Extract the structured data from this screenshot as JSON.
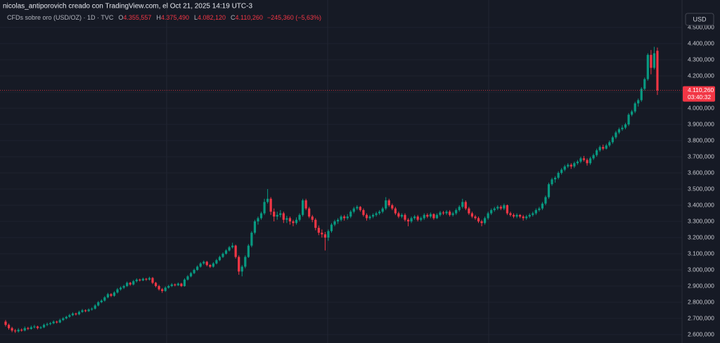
{
  "header": "nicolas_antiporovich creado con TradingView.com, el Oct 21, 2025 14:19 UTC-3",
  "currency_button": "USD",
  "legend": {
    "symbol": "CFDs sobre oro (USD/OZ) · 1D · TVC",
    "items": [
      {
        "key": "O",
        "value": "4.355,557"
      },
      {
        "key": "H",
        "value": "4.375,490"
      },
      {
        "key": "L",
        "value": "4.082,120"
      },
      {
        "key": "C",
        "value": "4.110,260"
      }
    ],
    "change": "−245,360 (−5,63%)"
  },
  "chart_data": {
    "type": "candlestick",
    "up_color": "#089981",
    "down_color": "#f23645",
    "grid": true,
    "ylim": [
      2550,
      4650
    ],
    "yticks": [
      {
        "value": 2600,
        "label": "2.600,000"
      },
      {
        "value": 2700,
        "label": "2.700,000"
      },
      {
        "value": 2800,
        "label": "2.800,000"
      },
      {
        "value": 2900,
        "label": "2.900,000"
      },
      {
        "value": 3000,
        "label": "3.000,000"
      },
      {
        "value": 3100,
        "label": "3.100,000"
      },
      {
        "value": 3200,
        "label": "3.200,000"
      },
      {
        "value": 3300,
        "label": "3.300,000"
      },
      {
        "value": 3400,
        "label": "3.400,000"
      },
      {
        "value": 3500,
        "label": "3.500,000"
      },
      {
        "value": 3600,
        "label": "3.600,000"
      },
      {
        "value": 3700,
        "label": "3.700,000"
      },
      {
        "value": 3800,
        "label": "3.800,000"
      },
      {
        "value": 3900,
        "label": "3.900,000"
      },
      {
        "value": 4000,
        "label": "4.000,000"
      },
      {
        "value": 4100,
        "label": "4.100,000"
      },
      {
        "value": 4200,
        "label": "4.200,000"
      },
      {
        "value": 4300,
        "label": "4.300,000"
      },
      {
        "value": 4400,
        "label": "4.400,000"
      },
      {
        "value": 4500,
        "label": "4.500,000"
      }
    ],
    "last_price": {
      "value": 4110.26,
      "label": "4.110,260"
    },
    "countdown": "03:40:32",
    "ohlc": [
      [
        2680,
        2690,
        2650,
        2660
      ],
      [
        2660,
        2668,
        2630,
        2640
      ],
      [
        2640,
        2648,
        2615,
        2625
      ],
      [
        2625,
        2635,
        2610,
        2620
      ],
      [
        2620,
        2640,
        2612,
        2630
      ],
      [
        2630,
        2638,
        2618,
        2625
      ],
      [
        2625,
        2650,
        2620,
        2640
      ],
      [
        2640,
        2648,
        2628,
        2635
      ],
      [
        2635,
        2655,
        2630,
        2645
      ],
      [
        2645,
        2660,
        2638,
        2650
      ],
      [
        2650,
        2655,
        2632,
        2640
      ],
      [
        2640,
        2652,
        2634,
        2645
      ],
      [
        2645,
        2668,
        2640,
        2660
      ],
      [
        2660,
        2674,
        2652,
        2665
      ],
      [
        2665,
        2678,
        2658,
        2670
      ],
      [
        2670,
        2688,
        2664,
        2680
      ],
      [
        2680,
        2686,
        2668,
        2675
      ],
      [
        2675,
        2698,
        2670,
        2690
      ],
      [
        2690,
        2708,
        2684,
        2700
      ],
      [
        2700,
        2716,
        2694,
        2710
      ],
      [
        2710,
        2728,
        2704,
        2720
      ],
      [
        2720,
        2738,
        2714,
        2730
      ],
      [
        2730,
        2736,
        2718,
        2725
      ],
      [
        2725,
        2748,
        2720,
        2740
      ],
      [
        2740,
        2758,
        2734,
        2750
      ],
      [
        2750,
        2756,
        2738,
        2745
      ],
      [
        2745,
        2762,
        2740,
        2755
      ],
      [
        2755,
        2768,
        2748,
        2760
      ],
      [
        2760,
        2788,
        2755,
        2780
      ],
      [
        2780,
        2808,
        2774,
        2800
      ],
      [
        2800,
        2818,
        2794,
        2810
      ],
      [
        2810,
        2838,
        2804,
        2830
      ],
      [
        2830,
        2858,
        2824,
        2850
      ],
      [
        2850,
        2856,
        2832,
        2840
      ],
      [
        2840,
        2868,
        2834,
        2860
      ],
      [
        2860,
        2888,
        2854,
        2880
      ],
      [
        2880,
        2898,
        2872,
        2890
      ],
      [
        2890,
        2908,
        2882,
        2900
      ],
      [
        2900,
        2928,
        2894,
        2920
      ],
      [
        2920,
        2926,
        2902,
        2910
      ],
      [
        2910,
        2938,
        2904,
        2930
      ],
      [
        2930,
        2948,
        2922,
        2940
      ],
      [
        2940,
        2946,
        2928,
        2935
      ],
      [
        2935,
        2952,
        2930,
        2945
      ],
      [
        2945,
        2950,
        2932,
        2940
      ],
      [
        2940,
        2958,
        2934,
        2950
      ],
      [
        2950,
        2956,
        2912,
        2920
      ],
      [
        2920,
        2926,
        2892,
        2900
      ],
      [
        2900,
        2908,
        2872,
        2880
      ],
      [
        2880,
        2888,
        2858,
        2870
      ],
      [
        2870,
        2898,
        2864,
        2890
      ],
      [
        2890,
        2908,
        2884,
        2900
      ],
      [
        2900,
        2918,
        2894,
        2910
      ],
      [
        2910,
        2916,
        2898,
        2905
      ],
      [
        2905,
        2922,
        2900,
        2915
      ],
      [
        2915,
        2920,
        2894,
        2900
      ],
      [
        2900,
        2948,
        2896,
        2940
      ],
      [
        2940,
        2968,
        2934,
        2960
      ],
      [
        2960,
        2988,
        2954,
        2980
      ],
      [
        2980,
        3008,
        2974,
        3000
      ],
      [
        3000,
        3028,
        2994,
        3020
      ],
      [
        3020,
        3048,
        3014,
        3040
      ],
      [
        3040,
        3058,
        3032,
        3050
      ],
      [
        3050,
        3056,
        3022,
        3030
      ],
      [
        3030,
        3036,
        3012,
        3020
      ],
      [
        3020,
        3048,
        3014,
        3040
      ],
      [
        3040,
        3068,
        3034,
        3060
      ],
      [
        3060,
        3088,
        3054,
        3080
      ],
      [
        3080,
        3108,
        3074,
        3100
      ],
      [
        3100,
        3128,
        3094,
        3120
      ],
      [
        3120,
        3148,
        3114,
        3140
      ],
      [
        3140,
        3168,
        3132,
        3150
      ],
      [
        3150,
        3156,
        3070,
        3080
      ],
      [
        3080,
        3090,
        2970,
        2990
      ],
      [
        2990,
        3030,
        2960,
        3020
      ],
      [
        3020,
        3090,
        3010,
        3080
      ],
      [
        3080,
        3160,
        3074,
        3150
      ],
      [
        3150,
        3240,
        3140,
        3230
      ],
      [
        3230,
        3310,
        3220,
        3300
      ],
      [
        3300,
        3330,
        3280,
        3320
      ],
      [
        3320,
        3360,
        3310,
        3350
      ],
      [
        3350,
        3440,
        3340,
        3420
      ],
      [
        3420,
        3500,
        3410,
        3440
      ],
      [
        3440,
        3450,
        3340,
        3360
      ],
      [
        3360,
        3380,
        3300,
        3330
      ],
      [
        3330,
        3360,
        3310,
        3340
      ],
      [
        3340,
        3370,
        3325,
        3350
      ],
      [
        3350,
        3360,
        3290,
        3310
      ],
      [
        3310,
        3335,
        3290,
        3320
      ],
      [
        3320,
        3330,
        3280,
        3300
      ],
      [
        3300,
        3310,
        3270,
        3290
      ],
      [
        3290,
        3325,
        3280,
        3310
      ],
      [
        3310,
        3350,
        3300,
        3340
      ],
      [
        3340,
        3440,
        3330,
        3430
      ],
      [
        3430,
        3440,
        3370,
        3380
      ],
      [
        3380,
        3390,
        3320,
        3330
      ],
      [
        3330,
        3340,
        3295,
        3310
      ],
      [
        3310,
        3320,
        3245,
        3260
      ],
      [
        3260,
        3275,
        3215,
        3230
      ],
      [
        3230,
        3250,
        3200,
        3220
      ],
      [
        3220,
        3235,
        3120,
        3200
      ],
      [
        3200,
        3250,
        3180,
        3240
      ],
      [
        3240,
        3290,
        3230,
        3280
      ],
      [
        3280,
        3310,
        3270,
        3300
      ],
      [
        3300,
        3320,
        3285,
        3310
      ],
      [
        3310,
        3340,
        3300,
        3330
      ],
      [
        3330,
        3340,
        3305,
        3320
      ],
      [
        3320,
        3345,
        3310,
        3330
      ],
      [
        3330,
        3370,
        3320,
        3360
      ],
      [
        3360,
        3390,
        3350,
        3380
      ],
      [
        3380,
        3400,
        3370,
        3390
      ],
      [
        3390,
        3395,
        3360,
        3370
      ],
      [
        3370,
        3380,
        3330,
        3340
      ],
      [
        3340,
        3350,
        3305,
        3320
      ],
      [
        3320,
        3340,
        3310,
        3330
      ],
      [
        3330,
        3350,
        3320,
        3340
      ],
      [
        3340,
        3360,
        3330,
        3350
      ],
      [
        3350,
        3370,
        3340,
        3360
      ],
      [
        3360,
        3390,
        3350,
        3380
      ],
      [
        3380,
        3450,
        3370,
        3430
      ],
      [
        3430,
        3440,
        3390,
        3400
      ],
      [
        3400,
        3410,
        3370,
        3380
      ],
      [
        3380,
        3390,
        3340,
        3350
      ],
      [
        3350,
        3360,
        3320,
        3330
      ],
      [
        3330,
        3350,
        3320,
        3340
      ],
      [
        3340,
        3350,
        3300,
        3310
      ],
      [
        3310,
        3320,
        3270,
        3300
      ],
      [
        3300,
        3330,
        3290,
        3320
      ],
      [
        3320,
        3340,
        3310,
        3330
      ],
      [
        3330,
        3340,
        3300,
        3310
      ],
      [
        3310,
        3330,
        3300,
        3320
      ],
      [
        3320,
        3350,
        3310,
        3340
      ],
      [
        3340,
        3350,
        3320,
        3330
      ],
      [
        3330,
        3355,
        3320,
        3345
      ],
      [
        3345,
        3350,
        3310,
        3320
      ],
      [
        3320,
        3350,
        3315,
        3340
      ],
      [
        3340,
        3365,
        3330,
        3355
      ],
      [
        3355,
        3365,
        3340,
        3350
      ],
      [
        3350,
        3370,
        3340,
        3360
      ],
      [
        3360,
        3370,
        3330,
        3340
      ],
      [
        3340,
        3360,
        3330,
        3350
      ],
      [
        3350,
        3380,
        3340,
        3370
      ],
      [
        3370,
        3400,
        3360,
        3390
      ],
      [
        3390,
        3440,
        3380,
        3420
      ],
      [
        3420,
        3430,
        3370,
        3380
      ],
      [
        3380,
        3390,
        3340,
        3350
      ],
      [
        3350,
        3360,
        3320,
        3330
      ],
      [
        3330,
        3340,
        3310,
        3320
      ],
      [
        3320,
        3330,
        3290,
        3300
      ],
      [
        3300,
        3310,
        3270,
        3290
      ],
      [
        3290,
        3330,
        3280,
        3320
      ],
      [
        3320,
        3360,
        3310,
        3350
      ],
      [
        3350,
        3380,
        3340,
        3370
      ],
      [
        3370,
        3390,
        3360,
        3380
      ],
      [
        3380,
        3400,
        3370,
        3390
      ],
      [
        3390,
        3400,
        3370,
        3380
      ],
      [
        3380,
        3410,
        3370,
        3400
      ],
      [
        3400,
        3405,
        3340,
        3350
      ],
      [
        3350,
        3360,
        3330,
        3340
      ],
      [
        3340,
        3350,
        3320,
        3330
      ],
      [
        3330,
        3350,
        3320,
        3340
      ],
      [
        3340,
        3345,
        3320,
        3330
      ],
      [
        3330,
        3340,
        3305,
        3320
      ],
      [
        3320,
        3340,
        3310,
        3330
      ],
      [
        3330,
        3350,
        3320,
        3340
      ],
      [
        3340,
        3360,
        3330,
        3350
      ],
      [
        3350,
        3380,
        3340,
        3370
      ],
      [
        3370,
        3390,
        3360,
        3380
      ],
      [
        3380,
        3420,
        3370,
        3410
      ],
      [
        3410,
        3460,
        3400,
        3450
      ],
      [
        3450,
        3540,
        3440,
        3530
      ],
      [
        3530,
        3570,
        3520,
        3560
      ],
      [
        3560,
        3580,
        3540,
        3570
      ],
      [
        3570,
        3610,
        3560,
        3600
      ],
      [
        3600,
        3630,
        3590,
        3620
      ],
      [
        3620,
        3650,
        3610,
        3640
      ],
      [
        3640,
        3660,
        3630,
        3650
      ],
      [
        3650,
        3660,
        3625,
        3640
      ],
      [
        3640,
        3670,
        3630,
        3660
      ],
      [
        3660,
        3680,
        3650,
        3670
      ],
      [
        3670,
        3700,
        3660,
        3690
      ],
      [
        3690,
        3705,
        3670,
        3680
      ],
      [
        3680,
        3690,
        3645,
        3660
      ],
      [
        3660,
        3700,
        3650,
        3690
      ],
      [
        3690,
        3720,
        3680,
        3710
      ],
      [
        3710,
        3750,
        3700,
        3740
      ],
      [
        3740,
        3770,
        3730,
        3760
      ],
      [
        3760,
        3775,
        3740,
        3750
      ],
      [
        3750,
        3780,
        3745,
        3770
      ],
      [
        3770,
        3800,
        3760,
        3790
      ],
      [
        3790,
        3830,
        3780,
        3820
      ],
      [
        3820,
        3860,
        3810,
        3850
      ],
      [
        3850,
        3880,
        3840,
        3870
      ],
      [
        3870,
        3895,
        3860,
        3880
      ],
      [
        3880,
        3910,
        3870,
        3900
      ],
      [
        3900,
        3970,
        3890,
        3960
      ],
      [
        3960,
        3990,
        3950,
        3980
      ],
      [
        3980,
        4040,
        3970,
        4030
      ],
      [
        4030,
        4060,
        4010,
        4050
      ],
      [
        4050,
        4130,
        4040,
        4120
      ],
      [
        4120,
        4190,
        4110,
        4180
      ],
      [
        4180,
        4340,
        4170,
        4330
      ],
      [
        4330,
        4360,
        4210,
        4250
      ],
      [
        4250,
        4380,
        4240,
        4340
      ],
      [
        4355.557,
        4375.49,
        4082.12,
        4110.26
      ]
    ]
  }
}
